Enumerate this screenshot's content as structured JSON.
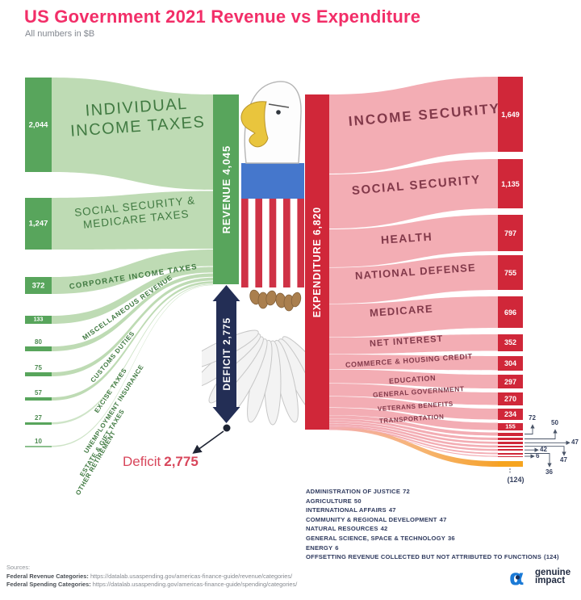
{
  "header": {
    "title": "US Government 2021 Revenue vs Expenditure",
    "subtitle": "All numbers in $B"
  },
  "colors": {
    "title_pink": "#f22e68",
    "revenue_dark_green": "#58a55c",
    "revenue_flow_green": "#bedbb4",
    "expenditure_dark_red": "#d02739",
    "expenditure_flow_pink": "#f3adb4",
    "deficit_navy": "#232e55",
    "offsetting_orange": "#f6a41f",
    "deficit_text_red": "#d8465b"
  },
  "sankey": {
    "revenue_bar": "REVENUE 4,045",
    "expenditure_bar": "EXPENDITURE 6,820",
    "deficit_bar": "DEFICIT 2,775",
    "deficit_note_label": "Deficit",
    "deficit_note_value": "2,775",
    "left": [
      {
        "label": "INDIVIDUAL INCOME TAXES",
        "value": "2,044"
      },
      {
        "label": "SOCIAL SECURITY & MEDICARE TAXES",
        "value": "1,247"
      },
      {
        "label": "CORPORATE INCOME TAXES",
        "value": "372"
      },
      {
        "label": "MISCELLANEOUS REVENUE",
        "value": "133"
      },
      {
        "label": "CUSTOMS DUTIES",
        "value": "80"
      },
      {
        "label": "EXCISE TAXES",
        "value": "75"
      },
      {
        "label": "UNEMPLOYMENT INSURANCE",
        "value": "57"
      },
      {
        "label": "ESTATE & GIFT TAXES",
        "value": "27"
      },
      {
        "label": "OTHER RETIREMENT",
        "value": "10"
      }
    ],
    "right": [
      {
        "label": "INCOME SECURITY",
        "value": "1,649"
      },
      {
        "label": "SOCIAL SECURITY",
        "value": "1,135"
      },
      {
        "label": "HEALTH",
        "value": "797"
      },
      {
        "label": "NATIONAL DEFENSE",
        "value": "755"
      },
      {
        "label": "MEDICARE",
        "value": "696"
      },
      {
        "label": "NET INTEREST",
        "value": "352"
      },
      {
        "label": "COMMERCE & HOUSING CREDIT",
        "value": "304"
      },
      {
        "label": "EDUCATION",
        "value": "297"
      },
      {
        "label": "GENERAL GOVERNMENT",
        "value": "270"
      },
      {
        "label": "VETERANS BENEFITS",
        "value": "234"
      },
      {
        "label": "TRANSPORTATION",
        "value": "155"
      }
    ],
    "callouts": [
      "72",
      "50",
      "47",
      "42",
      "6",
      "47",
      "36",
      "(124)"
    ]
  },
  "legend": [
    {
      "label": "ADMINISTRATION OF JUSTICE",
      "value": "72"
    },
    {
      "label": "AGRICULTURE",
      "value": "50"
    },
    {
      "label": "INTERNATIONAL AFFAIRS",
      "value": "47"
    },
    {
      "label": "COMMUNITY & REGIONAL DEVELOPMENT",
      "value": "47"
    },
    {
      "label": "NATURAL RESOURCES",
      "value": "42"
    },
    {
      "label": "GENERAL SCIENCE, SPACE & TECHNOLOGY",
      "value": "36"
    },
    {
      "label": "ENERGY",
      "value": "6"
    },
    {
      "label": "OFFSETTING REVENUE COLLECTED BUT NOT ATTRIBUTED TO FUNCTIONS",
      "value": "(124)"
    }
  ],
  "sources": {
    "heading": "Sources:",
    "rev_label": "Federal Revenue Categories:",
    "rev_url": "https://datalab.usaspending.gov/americas-finance-guide/revenue/categories/",
    "sp_label": "Federal Spending Categories:",
    "sp_url": "https://datalab.usaspending.gov/americas-finance-guide/spending/categories/"
  },
  "logo": {
    "line1": "genuine",
    "line2": "impact"
  },
  "chart_data": {
    "type": "sankey",
    "title": "US Government 2021 Revenue vs Expenditure",
    "units": "$B",
    "revenue_total": 4045,
    "expenditure_total": 6820,
    "deficit": 2775,
    "revenue_items": [
      {
        "name": "Individual Income Taxes",
        "value": 2044
      },
      {
        "name": "Social Security & Medicare Taxes",
        "value": 1247
      },
      {
        "name": "Corporate Income Taxes",
        "value": 372
      },
      {
        "name": "Miscellaneous Revenue",
        "value": 133
      },
      {
        "name": "Customs Duties",
        "value": 80
      },
      {
        "name": "Excise Taxes",
        "value": 75
      },
      {
        "name": "Unemployment Insurance",
        "value": 57
      },
      {
        "name": "Estate & Gift Taxes",
        "value": 27
      },
      {
        "name": "Other Retirement",
        "value": 10
      }
    ],
    "expenditure_items": [
      {
        "name": "Income Security",
        "value": 1649
      },
      {
        "name": "Social Security",
        "value": 1135
      },
      {
        "name": "Health",
        "value": 797
      },
      {
        "name": "National Defense",
        "value": 755
      },
      {
        "name": "Medicare",
        "value": 696
      },
      {
        "name": "Net Interest",
        "value": 352
      },
      {
        "name": "Commerce & Housing Credit",
        "value": 304
      },
      {
        "name": "Education",
        "value": 297
      },
      {
        "name": "General Government",
        "value": 270
      },
      {
        "name": "Veterans Benefits",
        "value": 234
      },
      {
        "name": "Transportation",
        "value": 155
      },
      {
        "name": "Administration of Justice",
        "value": 72
      },
      {
        "name": "Agriculture",
        "value": 50
      },
      {
        "name": "International Affairs",
        "value": 47
      },
      {
        "name": "Community & Regional Development",
        "value": 47
      },
      {
        "name": "Natural Resources",
        "value": 42
      },
      {
        "name": "General Science, Space & Technology",
        "value": 36
      },
      {
        "name": "Energy",
        "value": 6
      },
      {
        "name": "Offsetting Revenue Collected But Not Attributed To Functions",
        "value": -124
      }
    ]
  }
}
